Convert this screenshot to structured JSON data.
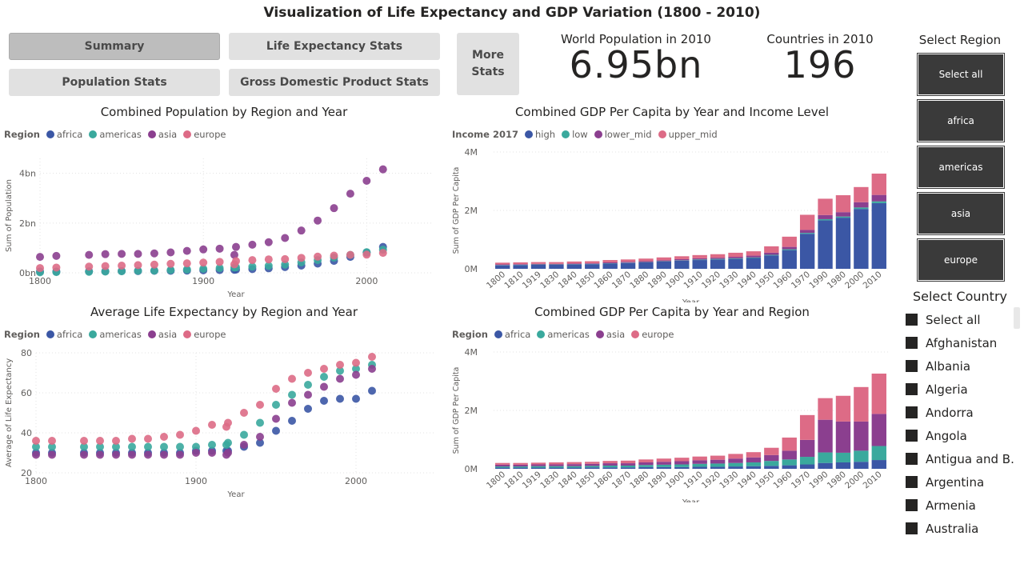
{
  "page_title": "Visualization of Life Expectancy and GDP Variation (1800 - 2010)",
  "nav": {
    "summary": "Summary",
    "life_expectancy": "Life Expectancy Stats",
    "population": "Population Stats",
    "gdp": "Gross Domestic Product Stats",
    "more_stats": "More Stats"
  },
  "cards": {
    "population": {
      "label": "World Population in 2010",
      "value": "6.95bn"
    },
    "countries": {
      "label": "Countries in 2010",
      "value": "196"
    }
  },
  "region_slicer": {
    "title": "Select Region",
    "items": [
      "Select all",
      "africa",
      "americas",
      "asia",
      "europe"
    ]
  },
  "country_slicer": {
    "title": "Select Country",
    "items": [
      "Select all",
      "Afghanistan",
      "Albania",
      "Algeria",
      "Andorra",
      "Angola",
      "Antigua and B...",
      "Argentina",
      "Armenia",
      "Australia"
    ]
  },
  "colors": {
    "africa": "#3b57a5",
    "americas": "#3aa99d",
    "asia": "#8b3f8f",
    "europe": "#dd6b86",
    "high": "#3b57a5",
    "low": "#3aa99d",
    "lower_mid": "#8b3f8f",
    "upper_mid": "#dd6b86"
  },
  "chart_data": [
    {
      "id": "population",
      "type": "scatter",
      "title": "Combined Population by Region and Year",
      "legend_title": "Region",
      "xlabel": "Year",
      "ylabel": "Sum of Population",
      "xlim": [
        1800,
        2040
      ],
      "ylim": [
        0,
        4.6
      ],
      "xticks": [
        "1800",
        "1900",
        "2000"
      ],
      "yticks": [
        "0bn",
        "2bn",
        "4bn"
      ],
      "x": [
        1800,
        1810,
        1830,
        1840,
        1850,
        1860,
        1870,
        1880,
        1890,
        1900,
        1910,
        1919,
        1920,
        1930,
        1940,
        1950,
        1960,
        1970,
        1980,
        1990,
        2000,
        2010
      ],
      "series": [
        {
          "name": "africa",
          "values": [
            0.05,
            0.05,
            0.06,
            0.06,
            0.07,
            0.07,
            0.08,
            0.08,
            0.09,
            0.1,
            0.11,
            0.12,
            0.13,
            0.15,
            0.18,
            0.23,
            0.29,
            0.37,
            0.48,
            0.64,
            0.81,
            1.04
          ]
        },
        {
          "name": "americas",
          "values": [
            0.02,
            0.03,
            0.04,
            0.05,
            0.06,
            0.08,
            0.09,
            0.11,
            0.13,
            0.16,
            0.19,
            0.21,
            0.22,
            0.25,
            0.28,
            0.33,
            0.42,
            0.51,
            0.61,
            0.72,
            0.83,
            0.93
          ]
        },
        {
          "name": "asia",
          "values": [
            0.64,
            0.68,
            0.72,
            0.75,
            0.76,
            0.76,
            0.78,
            0.82,
            0.88,
            0.94,
            0.97,
            0.72,
            1.04,
            1.13,
            1.23,
            1.4,
            1.7,
            2.1,
            2.6,
            3.18,
            3.7,
            4.16
          ]
        },
        {
          "name": "europe",
          "values": [
            0.19,
            0.21,
            0.25,
            0.27,
            0.29,
            0.31,
            0.33,
            0.36,
            0.38,
            0.41,
            0.44,
            0.34,
            0.47,
            0.51,
            0.54,
            0.55,
            0.6,
            0.65,
            0.69,
            0.72,
            0.73,
            0.8
          ]
        }
      ]
    },
    {
      "id": "gdp_income",
      "type": "bar",
      "stacked": true,
      "title": "Combined GDP Per Capita by Year and Income Level",
      "legend_title": "Income 2017",
      "xlabel": "Year",
      "ylabel": "Sum of GDP Per Capita",
      "ylim": [
        0,
        4
      ],
      "yticks": [
        "0M",
        "2M",
        "4M"
      ],
      "categories": [
        "1800",
        "1810",
        "1919",
        "1830",
        "1840",
        "1850",
        "1860",
        "1870",
        "1880",
        "1890",
        "1900",
        "1910",
        "1920",
        "1930",
        "1940",
        "1950",
        "1960",
        "1970",
        "1990",
        "1980",
        "2000",
        "2010"
      ],
      "series": [
        {
          "name": "high",
          "values": [
            0.12,
            0.13,
            0.14,
            0.14,
            0.15,
            0.16,
            0.18,
            0.2,
            0.22,
            0.25,
            0.28,
            0.3,
            0.32,
            0.34,
            0.37,
            0.46,
            0.64,
            1.2,
            1.66,
            1.75,
            2.05,
            2.25
          ]
        },
        {
          "name": "low",
          "values": [
            0.01,
            0.01,
            0.01,
            0.01,
            0.01,
            0.01,
            0.01,
            0.01,
            0.01,
            0.01,
            0.01,
            0.02,
            0.02,
            0.02,
            0.02,
            0.02,
            0.03,
            0.03,
            0.04,
            0.04,
            0.05,
            0.06
          ]
        },
        {
          "name": "lower_mid",
          "values": [
            0.02,
            0.02,
            0.02,
            0.02,
            0.02,
            0.02,
            0.03,
            0.03,
            0.03,
            0.03,
            0.04,
            0.04,
            0.04,
            0.05,
            0.06,
            0.07,
            0.08,
            0.1,
            0.14,
            0.15,
            0.18,
            0.22
          ]
        },
        {
          "name": "upper_mid",
          "values": [
            0.06,
            0.06,
            0.06,
            0.06,
            0.07,
            0.07,
            0.08,
            0.08,
            0.09,
            0.1,
            0.1,
            0.11,
            0.12,
            0.14,
            0.15,
            0.22,
            0.35,
            0.52,
            0.56,
            0.58,
            0.52,
            0.73
          ]
        }
      ]
    },
    {
      "id": "life_expectancy",
      "type": "scatter",
      "title": "Average Life Expectancy by Region and Year",
      "legend_title": "Region",
      "xlabel": "Year",
      "ylabel": "Average of Life Expectancy",
      "xlim": [
        1800,
        2050
      ],
      "ylim": [
        20,
        80
      ],
      "xticks": [
        "1800",
        "1900",
        "2000"
      ],
      "yticks": [
        "20",
        "40",
        "60",
        "80"
      ],
      "x": [
        1800,
        1810,
        1830,
        1840,
        1850,
        1860,
        1870,
        1880,
        1890,
        1900,
        1910,
        1919,
        1920,
        1930,
        1940,
        1950,
        1960,
        1970,
        1980,
        1990,
        2000,
        2010
      ],
      "series": [
        {
          "name": "africa",
          "values": [
            30,
            30,
            30,
            30,
            30,
            30,
            30,
            30,
            30,
            31,
            31,
            31,
            31,
            33,
            35,
            41,
            46,
            52,
            56,
            57,
            57,
            61
          ]
        },
        {
          "name": "americas",
          "values": [
            33,
            33,
            33,
            33,
            33,
            33,
            33,
            33,
            33,
            33,
            34,
            34,
            35,
            39,
            45,
            54,
            59,
            64,
            68,
            71,
            72,
            74
          ]
        },
        {
          "name": "asia",
          "values": [
            29,
            29,
            29,
            29,
            29,
            29,
            29,
            29,
            29,
            30,
            30,
            29,
            30,
            34,
            38,
            47,
            55,
            59,
            63,
            67,
            69,
            72
          ]
        },
        {
          "name": "europe",
          "values": [
            36,
            36,
            36,
            36,
            36,
            37,
            37,
            38,
            39,
            41,
            44,
            43,
            45,
            50,
            54,
            62,
            67,
            70,
            72,
            74,
            75,
            78
          ]
        }
      ]
    },
    {
      "id": "gdp_region",
      "type": "bar",
      "stacked": true,
      "title": "Combined GDP Per Capita by Year and Region",
      "legend_title": "Region",
      "xlabel": "Year",
      "ylabel": "Sum of GDP Per Capita",
      "ylim": [
        0,
        4
      ],
      "yticks": [
        "0M",
        "2M",
        "4M"
      ],
      "categories": [
        "1800",
        "1810",
        "1919",
        "1830",
        "1840",
        "1850",
        "1860",
        "1870",
        "1880",
        "1890",
        "1900",
        "1910",
        "1920",
        "1930",
        "1940",
        "1950",
        "1960",
        "1970",
        "1990",
        "1980",
        "2000",
        "2010"
      ],
      "series": [
        {
          "name": "africa",
          "values": [
            0.04,
            0.04,
            0.04,
            0.04,
            0.04,
            0.05,
            0.05,
            0.05,
            0.06,
            0.06,
            0.06,
            0.07,
            0.07,
            0.08,
            0.09,
            0.1,
            0.12,
            0.15,
            0.2,
            0.22,
            0.24,
            0.3
          ]
        },
        {
          "name": "americas",
          "values": [
            0.04,
            0.04,
            0.05,
            0.05,
            0.05,
            0.05,
            0.06,
            0.06,
            0.07,
            0.08,
            0.09,
            0.1,
            0.11,
            0.12,
            0.13,
            0.17,
            0.2,
            0.26,
            0.36,
            0.33,
            0.38,
            0.48
          ]
        },
        {
          "name": "asia",
          "values": [
            0.06,
            0.06,
            0.06,
            0.06,
            0.07,
            0.07,
            0.08,
            0.08,
            0.09,
            0.1,
            0.11,
            0.12,
            0.13,
            0.15,
            0.17,
            0.2,
            0.3,
            0.58,
            1.12,
            1.07,
            1.0,
            1.1
          ]
        },
        {
          "name": "europe",
          "values": [
            0.06,
            0.06,
            0.06,
            0.07,
            0.07,
            0.07,
            0.08,
            0.09,
            0.1,
            0.11,
            0.12,
            0.13,
            0.14,
            0.16,
            0.18,
            0.25,
            0.45,
            0.85,
            0.74,
            0.88,
            1.18,
            1.38
          ]
        }
      ]
    }
  ]
}
